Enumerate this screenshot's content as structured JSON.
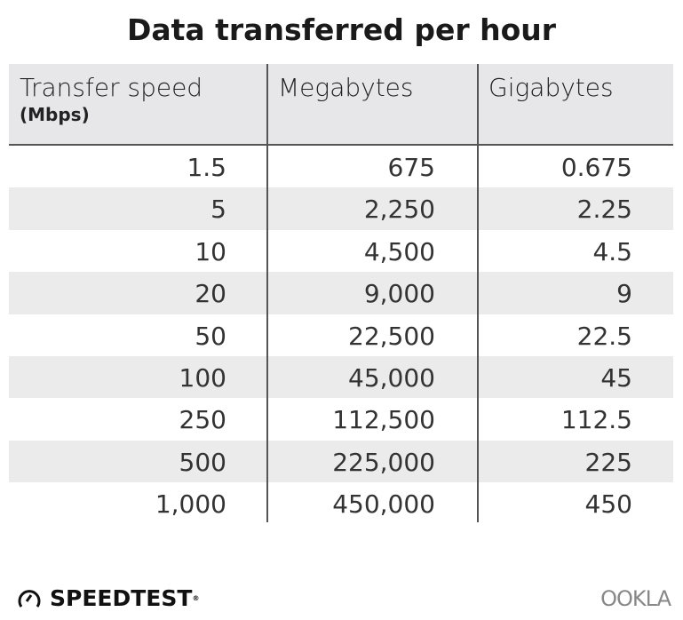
{
  "title": "Data transferred per hour",
  "chart_data": {
    "type": "table",
    "title": "Data transferred per hour",
    "columns": [
      {
        "label": "Transfer speed",
        "sublabel": "(Mbps)"
      },
      {
        "label": "Megabytes"
      },
      {
        "label": "Gigabytes"
      }
    ],
    "rows": [
      [
        "1.5",
        "675",
        "0.675"
      ],
      [
        "5",
        "2,250",
        "2.25"
      ],
      [
        "10",
        "4,500",
        "4.5"
      ],
      [
        "20",
        "9,000",
        "9"
      ],
      [
        "50",
        "22,500",
        "22.5"
      ],
      [
        "100",
        "45,000",
        "45"
      ],
      [
        "250",
        "112,500",
        "112.5"
      ],
      [
        "500",
        "225,000",
        "225"
      ],
      [
        "1,000",
        "450,000",
        "450"
      ]
    ]
  },
  "footer": {
    "brand": "SPEEDTEST",
    "brand_icon": "speedometer-icon",
    "partner": "OOKLA"
  },
  "colors": {
    "header_bg": "#e7e7ea",
    "stripe": "#ebebeb",
    "divider": "#555555"
  }
}
